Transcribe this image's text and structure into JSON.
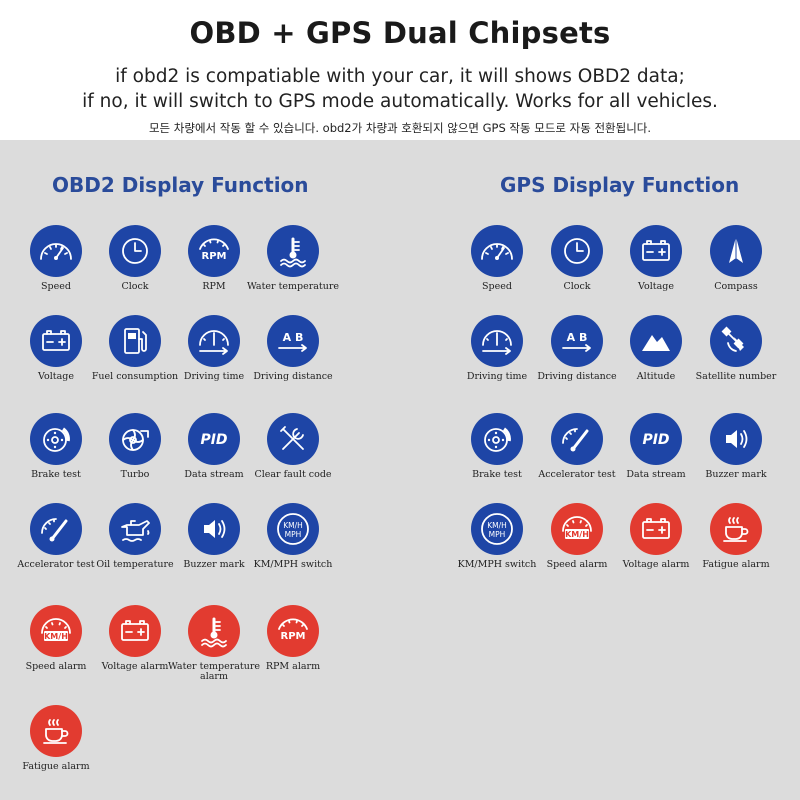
{
  "header": {
    "title": "OBD + GPS Dual Chipsets",
    "line1": "if obd2 is compatiable with your car, it will shows OBD2 data;",
    "line2": "if no, it will switch to GPS mode automatically. Works for all vehicles.",
    "line3": "모든 차량에서 작동 할 수 있습니다. obd2가 차량과 호환되지 않으면 GPS 작동 모드로 자동 전환됩니다."
  },
  "obd": {
    "title": "OBD2 Display Function",
    "items": [
      {
        "label": "Speed",
        "icon": "speedometer-icon",
        "color": "blue"
      },
      {
        "label": "Clock",
        "icon": "clock-icon",
        "color": "blue"
      },
      {
        "label": "RPM",
        "icon": "rpm-icon",
        "color": "blue"
      },
      {
        "label": "Water temperature",
        "icon": "water-temperature-icon",
        "color": "blue"
      },
      {
        "label": "Voltage",
        "icon": "battery-icon",
        "color": "blue"
      },
      {
        "label": "Fuel consumption",
        "icon": "fuel-icon",
        "color": "blue"
      },
      {
        "label": "Driving time",
        "icon": "driving-time-icon",
        "color": "blue"
      },
      {
        "label": "Driving distance",
        "icon": "driving-distance-icon",
        "color": "blue"
      },
      {
        "label": "Brake test",
        "icon": "brake-icon",
        "color": "blue"
      },
      {
        "label": "Turbo",
        "icon": "turbo-icon",
        "color": "blue"
      },
      {
        "label": "Data stream",
        "icon": "pid-icon",
        "color": "blue"
      },
      {
        "label": "Clear fault code",
        "icon": "wrench-icon",
        "color": "blue"
      },
      {
        "label": "Accelerator test",
        "icon": "accelerator-icon",
        "color": "blue"
      },
      {
        "label": "Oil temperature",
        "icon": "oil-icon",
        "color": "blue"
      },
      {
        "label": "Buzzer mark",
        "icon": "speaker-icon",
        "color": "blue"
      },
      {
        "label": "KM/MPH switch",
        "icon": "kmh-mph-icon",
        "color": "blue"
      },
      {
        "label": "Speed alarm",
        "icon": "speed-alarm-icon",
        "color": "red"
      },
      {
        "label": "Voltage alarm",
        "icon": "battery-icon",
        "color": "red"
      },
      {
        "label": "Water temperature alarm",
        "icon": "water-temperature-icon",
        "color": "red"
      },
      {
        "label": "RPM alarm",
        "icon": "rpm-icon",
        "color": "red"
      },
      {
        "label": "Fatigue alarm",
        "icon": "coffee-icon",
        "color": "red"
      }
    ]
  },
  "gps": {
    "title": "GPS Display Function",
    "items": [
      {
        "label": "Speed",
        "icon": "speedometer-icon",
        "color": "blue"
      },
      {
        "label": "Clock",
        "icon": "clock-icon",
        "color": "blue"
      },
      {
        "label": "Voltage",
        "icon": "battery-icon",
        "color": "blue"
      },
      {
        "label": "Compass",
        "icon": "compass-icon",
        "color": "blue"
      },
      {
        "label": "Driving time",
        "icon": "driving-time-icon",
        "color": "blue"
      },
      {
        "label": "Driving distance",
        "icon": "driving-distance-icon",
        "color": "blue"
      },
      {
        "label": "Altitude",
        "icon": "mountain-icon",
        "color": "blue"
      },
      {
        "label": "Satellite number",
        "icon": "satellite-icon",
        "color": "blue"
      },
      {
        "label": "Brake test",
        "icon": "brake-icon",
        "color": "blue"
      },
      {
        "label": "Accelerator test",
        "icon": "accelerator-icon",
        "color": "blue"
      },
      {
        "label": "Data stream",
        "icon": "pid-icon",
        "color": "blue"
      },
      {
        "label": "Buzzer mark",
        "icon": "speaker-icon",
        "color": "blue"
      },
      {
        "label": "KM/MPH switch",
        "icon": "kmh-mph-icon",
        "color": "blue"
      },
      {
        "label": "Speed alarm",
        "icon": "speed-alarm-icon",
        "color": "red"
      },
      {
        "label": "Voltage alarm",
        "icon": "battery-icon",
        "color": "red"
      },
      {
        "label": "Fatigue alarm",
        "icon": "coffee-icon",
        "color": "red"
      }
    ]
  },
  "colors": {
    "blue": "#1e45a6",
    "red": "#e23b30",
    "title_blue": "#2a4b9a",
    "background": "#dcdcdc"
  }
}
